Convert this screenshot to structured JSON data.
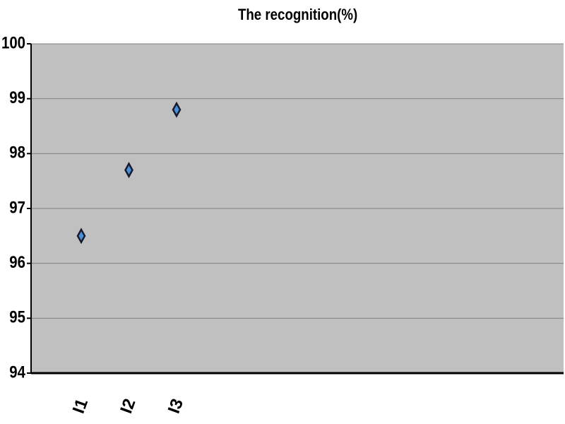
{
  "chart_data": {
    "type": "scatter",
    "title": "The recognition(%)",
    "categories": [
      "I1",
      "I2",
      "I3"
    ],
    "values": [
      96.5,
      97.7,
      98.8
    ],
    "color": "#4a90d9",
    "marker": "diamond",
    "ylim": [
      94,
      100
    ],
    "yticks": [
      94,
      95,
      96,
      97,
      98,
      99,
      100
    ],
    "grid": true
  }
}
